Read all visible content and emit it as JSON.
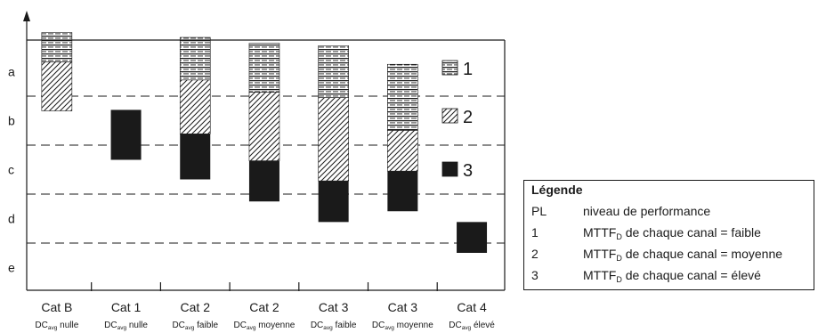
{
  "chart_data": {
    "type": "bar",
    "subtype": "floating-stacked",
    "y_levels": [
      "a",
      "b",
      "c",
      "d",
      "e"
    ],
    "categories": [
      {
        "label": "Cat B",
        "sub_prefix": "DC",
        "sub_subscript": "avg",
        "sub_suffix": " nulle"
      },
      {
        "label": "Cat 1",
        "sub_prefix": "DC",
        "sub_subscript": "avg",
        "sub_suffix": " nulle"
      },
      {
        "label": "Cat 2",
        "sub_prefix": "DC",
        "sub_subscript": "avg",
        "sub_suffix": " faible"
      },
      {
        "label": "Cat 2",
        "sub_prefix": "DC",
        "sub_subscript": "avg",
        "sub_suffix": " moyenne"
      },
      {
        "label": "Cat 3",
        "sub_prefix": "DC",
        "sub_subscript": "avg",
        "sub_suffix": " faible"
      },
      {
        "label": "Cat 3",
        "sub_prefix": "DC",
        "sub_subscript": "avg",
        "sub_suffix": " moyenne"
      },
      {
        "label": "Cat 4",
        "sub_prefix": "DC",
        "sub_subscript": "avg",
        "sub_suffix": " élevé"
      }
    ],
    "series": [
      {
        "name": "1",
        "pattern": "horizontal-lines",
        "ranges": [
          [
            -0.3,
            0.3
          ],
          null,
          [
            -0.2,
            0.67
          ],
          [
            -0.08,
            0.92
          ],
          [
            -0.03,
            1.03
          ],
          [
            0.35,
            1.7
          ],
          null
        ]
      },
      {
        "name": "2",
        "pattern": "diagonal-hatch",
        "ranges": [
          [
            0.3,
            1.3
          ],
          null,
          [
            0.67,
            1.77
          ],
          [
            0.92,
            2.32
          ],
          [
            1.03,
            2.73
          ],
          [
            1.7,
            2.53
          ],
          null
        ]
      },
      {
        "name": "3",
        "pattern": "solid",
        "ranges": [
          null,
          [
            1.28,
            2.3
          ],
          [
            1.77,
            2.7
          ],
          [
            2.32,
            3.15
          ],
          [
            2.73,
            3.57
          ],
          [
            2.53,
            3.35
          ],
          [
            3.57,
            4.2
          ]
        ]
      }
    ],
    "grid": "dashed horizontal lines at level boundaries",
    "legend_position": "right",
    "legend": {
      "numbers": [
        "1",
        "2",
        "3"
      ]
    }
  },
  "legend_box": {
    "title": "Légende",
    "rows": [
      {
        "key": "PL",
        "text": "niveau de performance",
        "text_sub": "",
        "text_after": ""
      },
      {
        "key": "1",
        "text": "MTTF",
        "text_sub": "D",
        "text_after": " de chaque canal = faible"
      },
      {
        "key": "2",
        "text": "MTTF",
        "text_sub": "D",
        "text_after": " de chaque canal = moyenne"
      },
      {
        "key": "3",
        "text": "MTTF",
        "text_sub": "D",
        "text_after": " de chaque canal = élevé"
      }
    ]
  },
  "colors": {
    "ink": "#1a1a1a",
    "background": "#ffffff"
  }
}
